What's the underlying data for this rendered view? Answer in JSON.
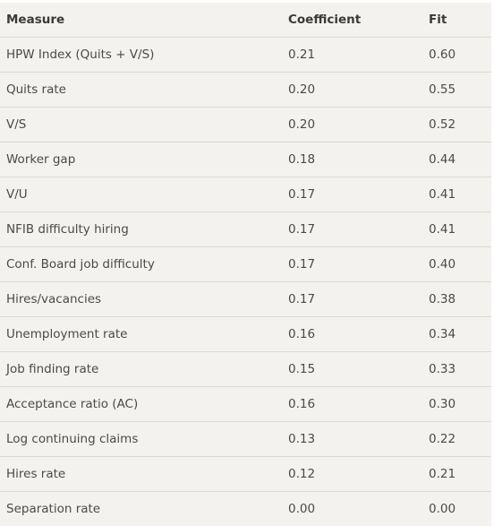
{
  "headers": {
    "measure": "Measure",
    "coefficient": "Coefficient",
    "fit": "Fit"
  },
  "rows": [
    {
      "measure": "HPW Index (Quits + V/S)",
      "coefficient": "0.21",
      "fit": "0.60"
    },
    {
      "measure": "Quits rate",
      "coefficient": "0.20",
      "fit": "0.55"
    },
    {
      "measure": "V/S",
      "coefficient": "0.20",
      "fit": "0.52"
    },
    {
      "measure": "Worker gap",
      "coefficient": "0.18",
      "fit": "0.44"
    },
    {
      "measure": "V/U",
      "coefficient": "0.17",
      "fit": "0.41"
    },
    {
      "measure": "NFIB difficulty hiring",
      "coefficient": "0.17",
      "fit": "0.41"
    },
    {
      "measure": "Conf. Board job difficulty",
      "coefficient": "0.17",
      "fit": "0.40"
    },
    {
      "measure": "Hires/vacancies",
      "coefficient": "0.17",
      "fit": "0.38"
    },
    {
      "measure": "Unemployment rate",
      "coefficient": "0.16",
      "fit": "0.34"
    },
    {
      "measure": "Job finding rate",
      "coefficient": "0.15",
      "fit": "0.33"
    },
    {
      "measure": "Acceptance ratio (AC)",
      "coefficient": "0.16",
      "fit": "0.30"
    },
    {
      "measure": "Log continuing claims",
      "coefficient": "0.13",
      "fit": "0.22"
    },
    {
      "measure": "Hires rate",
      "coefficient": "0.12",
      "fit": "0.21"
    },
    {
      "measure": "Separation rate",
      "coefficient": "0.00",
      "fit": "0.00"
    }
  ],
  "colors": {
    "background": "#f4f2ee",
    "divider": "#dcd8d1",
    "text": "#4a4a4a",
    "header_text": "#3a3a3a"
  }
}
